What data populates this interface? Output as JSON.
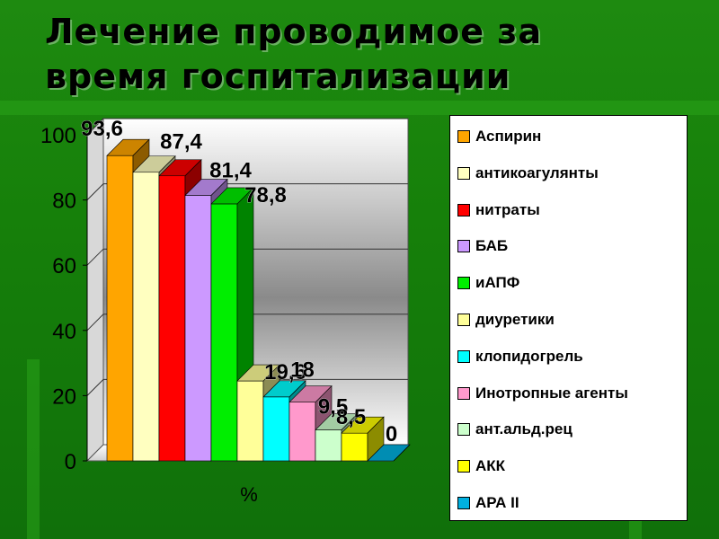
{
  "slide": {
    "title_lines": [
      "Лечение проводимое за",
      "время госпитализации"
    ]
  },
  "chart_data": {
    "type": "bar",
    "title": "Лечение проводимое за время госпитализации",
    "xlabel": "%",
    "ylabel": "",
    "ylim": [
      0,
      100
    ],
    "yticks": [
      0,
      20,
      40,
      60,
      80,
      100
    ],
    "legend_position": "right",
    "grid": true,
    "series": [
      {
        "name": "Аспирин",
        "value": 93.6,
        "label": "93,6",
        "color": "#ffa500"
      },
      {
        "name": "антикоагулянты",
        "value": 88.5,
        "label": "",
        "color": "#ffffc0"
      },
      {
        "name": "нитраты",
        "value": 87.4,
        "label": "87,4",
        "color": "#ff0000"
      },
      {
        "name": "БАБ",
        "value": 81.4,
        "label": "81,4",
        "color": "#cc99ff"
      },
      {
        "name": "иАПФ",
        "value": 78.8,
        "label": "78,8",
        "color": "#00ee00"
      },
      {
        "name": "диуретики",
        "value": 24.5,
        "label": "",
        "color": "#ffff99"
      },
      {
        "name": "клопидогрель",
        "value": 19.6,
        "label": "19,6",
        "color": "#00ffff"
      },
      {
        "name": "Инотропные агенты",
        "value": 18,
        "label": "18",
        "color": "#ff99cc"
      },
      {
        "name": "ант.альд.рец",
        "value": 9.5,
        "label": "9,5",
        "color": "#ccffcc"
      },
      {
        "name": "АКК",
        "value": 8.5,
        "label": "8,5",
        "color": "#ffff00"
      },
      {
        "name": "АРА II",
        "value": 0,
        "label": "0",
        "color": "#00b0e0"
      }
    ]
  }
}
